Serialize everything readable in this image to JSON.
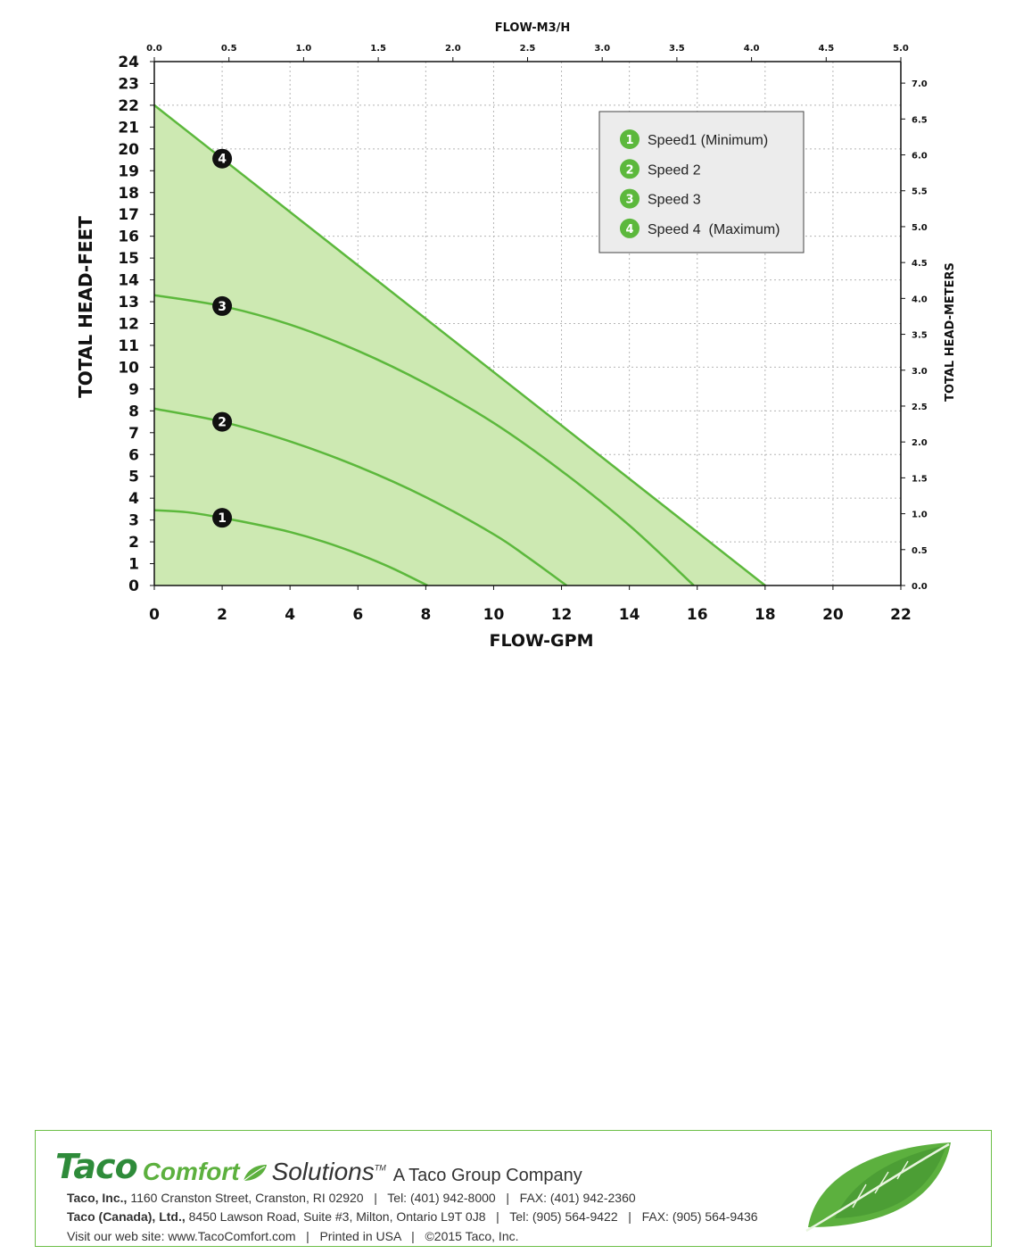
{
  "chart_data": {
    "type": "line",
    "title": "",
    "xlabel": "FLOW-GPM",
    "ylabel": "TOTAL HEAD-FEET",
    "x2label": "FLOW-M3/H",
    "y2label": "TOTAL HEAD-METERS",
    "xlim": [
      0,
      22
    ],
    "ylim": [
      0,
      24
    ],
    "x2lim": [
      0,
      5
    ],
    "y2lim": [
      0,
      7.3
    ],
    "x_ticks": [
      "0",
      "2",
      "4",
      "6",
      "8",
      "10",
      "12",
      "14",
      "16",
      "18",
      "20",
      "22"
    ],
    "y_ticks": [
      "0",
      "1",
      "2",
      "3",
      "4",
      "5",
      "6",
      "7",
      "8",
      "9",
      "10",
      "11",
      "12",
      "13",
      "14",
      "15",
      "16",
      "17",
      "18",
      "19",
      "20",
      "21",
      "22",
      "23",
      "24"
    ],
    "x2_ticks": [
      "0.0",
      "0.5",
      "1.0",
      "1.5",
      "2.0",
      "2.5",
      "3.0",
      "3.5",
      "4.0",
      "4.5",
      "5.0"
    ],
    "y2_ticks": [
      "0.0",
      "0.5",
      "1.0",
      "1.5",
      "2.0",
      "2.5",
      "3.0",
      "3.5",
      "4.0",
      "4.5",
      "5.0",
      "5.5",
      "6.0",
      "6.5",
      "7.0"
    ],
    "grid": true,
    "legend_position": "top-right",
    "series": [
      {
        "name": "Speed1 (Minimum)",
        "marker": "1",
        "marker_x": 2,
        "x": [
          0,
          1,
          2,
          3,
          4,
          5,
          6,
          7,
          8.05
        ],
        "y": [
          3.45,
          3.35,
          3.1,
          2.8,
          2.45,
          2.0,
          1.45,
          0.8,
          0
        ]
      },
      {
        "name": "Speed 2",
        "marker": "2",
        "marker_x": 2,
        "x": [
          0,
          2,
          4,
          6,
          8,
          10,
          11,
          12.15
        ],
        "y": [
          8.1,
          7.5,
          6.6,
          5.45,
          4.05,
          2.35,
          1.3,
          0
        ]
      },
      {
        "name": "Speed 3",
        "marker": "3",
        "marker_x": 2,
        "x": [
          0,
          2,
          4,
          6,
          8,
          10,
          12,
          14,
          15.9
        ],
        "y": [
          13.3,
          12.8,
          11.95,
          10.75,
          9.25,
          7.45,
          5.25,
          2.75,
          0
        ]
      },
      {
        "name": "Speed 4  (Maximum)",
        "marker": "4",
        "marker_x": 2,
        "x": [
          0,
          18
        ],
        "y": [
          22,
          0
        ]
      }
    ],
    "colors": {
      "line": "#5cb83c",
      "fill": "#cde9b2",
      "marker_bg": "#111111",
      "legend_badge": "#5cb83c",
      "legend_bg": "#ececec",
      "grid": "#b5b5b5"
    }
  },
  "footer": {
    "brand_taco": "Taco",
    "brand_comfort": "Comfort",
    "brand_solutions": "Solutions",
    "brand_tm": "TM",
    "brand_group": "A Taco Group Company",
    "line1_bold": "Taco, Inc.,",
    "line1_rest": " 1160 Cranston Street, Cranston, RI 02920   |   Tel: (401) 942-8000   |   FAX: (401) 942-2360",
    "line2_bold": "Taco (Canada), Ltd.,",
    "line2_rest": " 8450 Lawson Road, Suite #3, Milton, Ontario L9T 0J8   |   Tel: (905) 564-9422   |   FAX: (905) 564-9436",
    "line3": "Visit our web site: www.TacoComfort.com   |   Printed in USA   |   ©2015 Taco, Inc."
  }
}
